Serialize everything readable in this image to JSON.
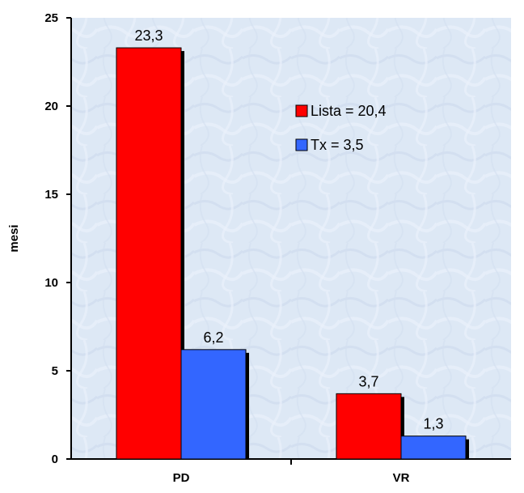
{
  "chart_data": {
    "type": "bar",
    "categories": [
      "PD",
      "VR"
    ],
    "series": [
      {
        "name": "Lista = 20,4",
        "values": [
          23.3,
          3.7
        ],
        "labels": [
          "23,3",
          "3,7"
        ],
        "color": "#ff0000"
      },
      {
        "name": "Tx = 3,5",
        "values": [
          6.2,
          1.3
        ],
        "labels": [
          "6,2",
          "1,3"
        ],
        "color": "#3366ff"
      }
    ],
    "ylabel": "mesi",
    "xlabel": "",
    "ylim": [
      0,
      25
    ],
    "yticks": [
      0,
      5,
      10,
      15,
      20,
      25
    ],
    "ytick_labels": [
      "0",
      "5",
      "10",
      "15",
      "20",
      "25"
    ],
    "grid": false,
    "legend_position": "upper-right",
    "plot_background": "#dce8f4"
  }
}
